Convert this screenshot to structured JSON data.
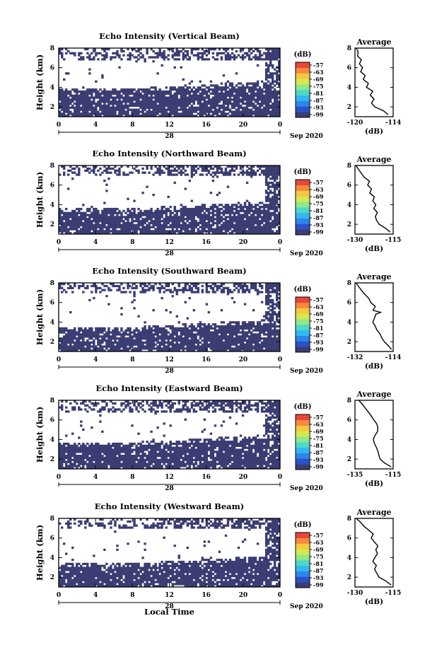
{
  "figure": {
    "shared_x_label": "Local Time",
    "date_text": "Sep 2020",
    "day_label": "28",
    "colorbar_unit": "(dB)",
    "avg_title": "Average",
    "avg_xlabel": "(dB)",
    "y_label": "Height (km)"
  },
  "colors": {
    "background": "#ffffff",
    "echo_fill": "#3b3d73",
    "profile_line": "#000000",
    "colorbar": [
      "#3b3d73",
      "#2c52c8",
      "#2c86e8",
      "#33b7f0",
      "#4fd8c6",
      "#8fe88a",
      "#d8e850",
      "#f5c842",
      "#f58a3a",
      "#e8473a"
    ]
  },
  "chart_data": [
    {
      "type": "heatmap",
      "title": "Echo Intensity (Vertical Beam)",
      "xlabel": "",
      "ylabel": "Height (km)",
      "xlim": [
        0,
        24
      ],
      "ylim": [
        1,
        8
      ],
      "xticks": [
        "0",
        "4",
        "8",
        "12",
        "16",
        "20",
        "0"
      ],
      "yticks": [
        "2",
        "4",
        "6",
        "8"
      ],
      "colorbar_ticks": [
        "-57",
        "-63",
        "-69",
        "-75",
        "-81",
        "-87",
        "-93",
        "-99"
      ],
      "solid_below_km": 3.8,
      "gap_top_km": 6.7,
      "profile": {
        "xlim": [
          -120,
          -114
        ],
        "xticks": [
          "-120",
          "-114"
        ],
        "yticks": [
          "2",
          "4",
          "6",
          "8"
        ],
        "points": [
          [
            -114.8,
            1.2
          ],
          [
            -115.5,
            1.6
          ],
          [
            -116.9,
            2.0
          ],
          [
            -117.4,
            2.4
          ],
          [
            -117.0,
            2.8
          ],
          [
            -117.6,
            3.2
          ],
          [
            -117.2,
            3.6
          ],
          [
            -118.2,
            4.0
          ],
          [
            -117.9,
            4.4
          ],
          [
            -118.7,
            4.8
          ],
          [
            -118.4,
            5.2
          ],
          [
            -119.1,
            5.6
          ],
          [
            -118.8,
            6.0
          ],
          [
            -119.3,
            6.4
          ],
          [
            -119.0,
            6.8
          ],
          [
            -119.6,
            7.2
          ],
          [
            -119.5,
            7.6
          ],
          [
            -119.8,
            8.0
          ]
        ]
      }
    },
    {
      "type": "heatmap",
      "title": "Echo Intensity (Northward Beam)",
      "xlabel": "",
      "ylabel": "Height (km)",
      "xlim": [
        0,
        24
      ],
      "ylim": [
        1,
        8
      ],
      "xticks": [
        "0",
        "4",
        "8",
        "12",
        "16",
        "20",
        "0"
      ],
      "yticks": [
        "2",
        "4",
        "6",
        "8"
      ],
      "colorbar_ticks": [
        "-57",
        "-63",
        "-69",
        "-75",
        "-81",
        "-87",
        "-93",
        "-99"
      ],
      "solid_below_km": 3.5,
      "gap_top_km": 6.9,
      "profile": {
        "xlim": [
          -130,
          -115
        ],
        "xticks": [
          "-130",
          "-115"
        ],
        "yticks": [
          "2",
          "4",
          "6",
          "8"
        ],
        "points": [
          [
            -116.2,
            1.2
          ],
          [
            -118.0,
            1.6
          ],
          [
            -120.5,
            2.0
          ],
          [
            -121.5,
            2.4
          ],
          [
            -122.0,
            2.8
          ],
          [
            -121.2,
            3.2
          ],
          [
            -122.6,
            3.6
          ],
          [
            -121.8,
            4.0
          ],
          [
            -123.0,
            4.4
          ],
          [
            -122.4,
            4.8
          ],
          [
            -124.2,
            5.2
          ],
          [
            -123.5,
            5.6
          ],
          [
            -125.0,
            6.0
          ],
          [
            -124.3,
            6.4
          ],
          [
            -126.4,
            6.8
          ],
          [
            -127.5,
            7.2
          ],
          [
            -128.6,
            7.6
          ],
          [
            -129.6,
            8.0
          ]
        ]
      }
    },
    {
      "type": "heatmap",
      "title": "Echo Intensity (Southward Beam)",
      "xlabel": "",
      "ylabel": "Height (km)",
      "xlim": [
        0,
        24
      ],
      "ylim": [
        1,
        8
      ],
      "xticks": [
        "0",
        "4",
        "8",
        "12",
        "16",
        "20",
        "0"
      ],
      "yticks": [
        "2",
        "4",
        "6",
        "8"
      ],
      "colorbar_ticks": [
        "-57",
        "-63",
        "-69",
        "-75",
        "-81",
        "-87",
        "-93",
        "-99"
      ],
      "solid_below_km": 3.4,
      "gap_top_km": 7.0,
      "profile": {
        "xlim": [
          -132,
          -114
        ],
        "xticks": [
          "-132",
          "-114"
        ],
        "yticks": [
          "2",
          "4",
          "6",
          "8"
        ],
        "points": [
          [
            -114.8,
            1.2
          ],
          [
            -116.3,
            1.6
          ],
          [
            -118.2,
            2.0
          ],
          [
            -119.4,
            2.4
          ],
          [
            -120.2,
            2.8
          ],
          [
            -121.7,
            3.2
          ],
          [
            -122.5,
            3.6
          ],
          [
            -123.6,
            4.0
          ],
          [
            -122.8,
            4.4
          ],
          [
            -122.2,
            4.8
          ],
          [
            -119.9,
            5.0
          ],
          [
            -123.5,
            5.2
          ],
          [
            -122.4,
            5.6
          ],
          [
            -124.6,
            6.0
          ],
          [
            -125.4,
            6.4
          ],
          [
            -127.2,
            6.8
          ],
          [
            -128.8,
            7.2
          ],
          [
            -130.2,
            7.6
          ],
          [
            -131.5,
            8.0
          ]
        ]
      }
    },
    {
      "type": "heatmap",
      "title": "Echo Intensity (Eastward Beam)",
      "xlabel": "",
      "ylabel": "Height (km)",
      "xlim": [
        0,
        24
      ],
      "ylim": [
        1,
        8
      ],
      "xticks": [
        "0",
        "4",
        "8",
        "12",
        "16",
        "20",
        "0"
      ],
      "yticks": [
        "2",
        "4",
        "6",
        "8"
      ],
      "colorbar_ticks": [
        "-57",
        "-63",
        "-69",
        "-75",
        "-81",
        "-87",
        "-93",
        "-99"
      ],
      "solid_below_km": 3.6,
      "gap_top_km": 6.8,
      "profile": {
        "xlim": [
          -135,
          -115
        ],
        "xticks": [
          "-135",
          "-115"
        ],
        "yticks": [
          "2",
          "4",
          "6",
          "8"
        ],
        "points": [
          [
            -116.0,
            1.2
          ],
          [
            -119.5,
            1.6
          ],
          [
            -121.8,
            2.0
          ],
          [
            -122.5,
            2.4
          ],
          [
            -123.0,
            2.8
          ],
          [
            -123.8,
            3.2
          ],
          [
            -124.8,
            3.6
          ],
          [
            -125.4,
            4.0
          ],
          [
            -124.6,
            4.4
          ],
          [
            -123.2,
            4.8
          ],
          [
            -123.0,
            5.2
          ],
          [
            -123.6,
            5.6
          ],
          [
            -125.2,
            6.0
          ],
          [
            -126.5,
            6.4
          ],
          [
            -128.0,
            6.8
          ],
          [
            -129.6,
            7.2
          ],
          [
            -131.2,
            7.6
          ],
          [
            -133.0,
            8.0
          ]
        ]
      }
    },
    {
      "type": "heatmap",
      "title": "Echo Intensity (Westward Beam)",
      "xlabel": "Local Time",
      "ylabel": "Height (km)",
      "xlim": [
        0,
        24
      ],
      "ylim": [
        1,
        8
      ],
      "xticks": [
        "0",
        "4",
        "8",
        "12",
        "16",
        "20",
        "0"
      ],
      "yticks": [
        "2",
        "4",
        "6",
        "8"
      ],
      "colorbar_ticks": [
        "-57",
        "-63",
        "-69",
        "-75",
        "-81",
        "-87",
        "-93",
        "-99"
      ],
      "solid_below_km": 3.3,
      "gap_top_km": 7.0,
      "profile": {
        "xlim": [
          -130,
          -115
        ],
        "xticks": [
          "-130",
          "-115"
        ],
        "yticks": [
          "2",
          "4",
          "6",
          "8"
        ],
        "points": [
          [
            -115.8,
            1.2
          ],
          [
            -117.8,
            1.6
          ],
          [
            -120.6,
            2.0
          ],
          [
            -121.4,
            2.4
          ],
          [
            -122.3,
            2.8
          ],
          [
            -121.6,
            3.2
          ],
          [
            -123.0,
            3.6
          ],
          [
            -122.2,
            4.0
          ],
          [
            -121.2,
            4.4
          ],
          [
            -121.8,
            4.8
          ],
          [
            -121.0,
            5.2
          ],
          [
            -122.4,
            5.6
          ],
          [
            -123.6,
            6.0
          ],
          [
            -122.8,
            6.4
          ],
          [
            -124.6,
            6.8
          ],
          [
            -126.5,
            7.2
          ],
          [
            -127.8,
            7.6
          ],
          [
            -129.5,
            8.0
          ]
        ]
      }
    }
  ]
}
